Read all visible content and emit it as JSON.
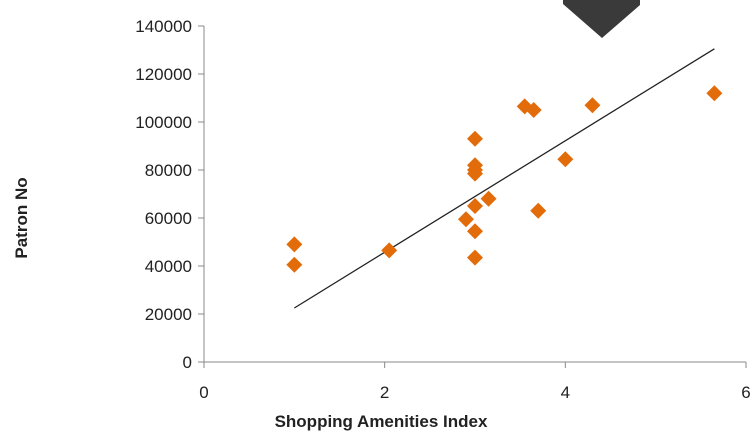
{
  "chart_data": {
    "type": "scatter",
    "title": "",
    "xlabel": "Shopping Amenities Index",
    "ylabel": "Patron No",
    "xlim": [
      0,
      6
    ],
    "ylim": [
      0,
      140000
    ],
    "x_ticks": [
      0,
      2,
      4,
      6
    ],
    "y_ticks": [
      0,
      20000,
      40000,
      60000,
      80000,
      100000,
      120000,
      140000
    ],
    "grid": false,
    "legend": "none",
    "marker": "diamond",
    "marker_color": "#E36C0A",
    "trendline": {
      "type": "linear",
      "color": "#222222",
      "x": [
        1,
        5.65
      ],
      "y": [
        22500,
        130500
      ]
    },
    "series": [
      {
        "points": [
          {
            "x": 1,
            "y": 49000
          },
          {
            "x": 1,
            "y": 40500
          },
          {
            "x": 2.05,
            "y": 46500
          },
          {
            "x": 2.9,
            "y": 59500
          },
          {
            "x": 3,
            "y": 93000
          },
          {
            "x": 3,
            "y": 82000
          },
          {
            "x": 3,
            "y": 80000
          },
          {
            "x": 3,
            "y": 78500
          },
          {
            "x": 3,
            "y": 65000
          },
          {
            "x": 3,
            "y": 54500
          },
          {
            "x": 3,
            "y": 43500
          },
          {
            "x": 3.15,
            "y": 68000
          },
          {
            "x": 3.55,
            "y": 106500
          },
          {
            "x": 3.65,
            "y": 105000
          },
          {
            "x": 3.7,
            "y": 63000
          },
          {
            "x": 4,
            "y": 84500
          },
          {
            "x": 4.3,
            "y": 107000
          },
          {
            "x": 5.65,
            "y": 112000
          }
        ]
      }
    ]
  }
}
